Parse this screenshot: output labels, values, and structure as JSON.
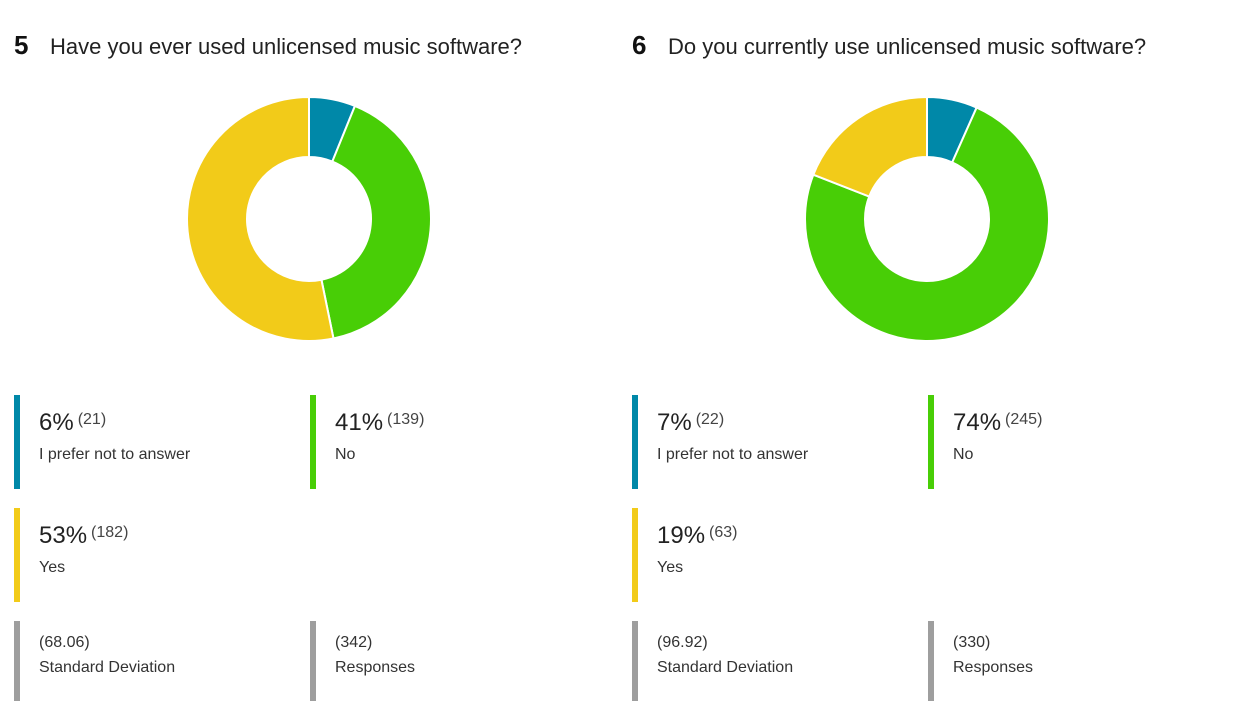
{
  "colors": {
    "prefer_not": "#0088a8",
    "no": "#48ce06",
    "yes": "#f2cb19",
    "stat": "#9e9e9e"
  },
  "chart_data": [
    {
      "type": "pie",
      "number": "5",
      "title": "Have you ever used unlicensed music software?",
      "categories": [
        "I prefer not to answer",
        "No",
        "Yes"
      ],
      "values": [
        21,
        139,
        182
      ],
      "percentages": [
        "6%",
        "41%",
        "53%"
      ],
      "counts": [
        "(21)",
        "(139)",
        "(182)"
      ],
      "stats": {
        "std_dev_value": "(68.06)",
        "std_dev_label": "Standard Deviation",
        "responses_value": "(342)",
        "responses_label": "Responses"
      }
    },
    {
      "type": "pie",
      "number": "6",
      "title": "Do you currently use unlicensed music software?",
      "categories": [
        "I prefer not to answer",
        "No",
        "Yes"
      ],
      "values": [
        22,
        245,
        63
      ],
      "percentages": [
        "7%",
        "74%",
        "19%"
      ],
      "counts": [
        "(22)",
        "(245)",
        "(63)"
      ],
      "stats": {
        "std_dev_value": "(96.92)",
        "std_dev_label": "Standard Deviation",
        "responses_value": "(330)",
        "responses_label": "Responses"
      }
    }
  ]
}
